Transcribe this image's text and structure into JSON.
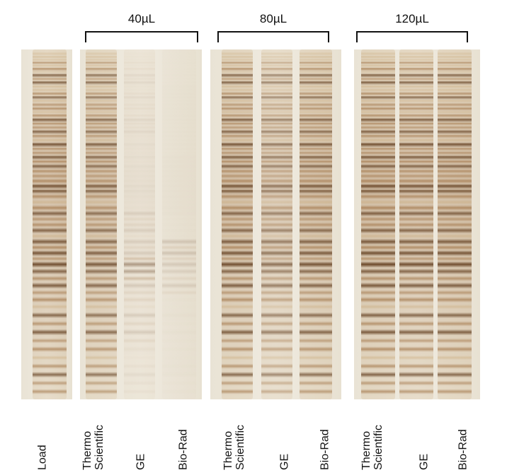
{
  "groups": [
    {
      "label": "40µL"
    },
    {
      "label": "80µL"
    },
    {
      "label": "120µL"
    }
  ],
  "lane_labels": {
    "load": "Load",
    "g1_thermo": "Thermo\nScientific",
    "g1_ge": "GE",
    "g1_biorad": "Bio-Rad",
    "g2_thermo": "Thermo\nScientific",
    "g2_ge": "GE",
    "g2_biorad": "Bio-Rad",
    "g3_thermo": "Thermo\nScientific",
    "g3_ge": "GE",
    "g3_biorad": "Bio-Rad"
  },
  "colors": {
    "gel_background": "#ece6d9",
    "band_dark": "#5a3414",
    "band_mid": "#9a6a3a",
    "band_light": "#c9a97a"
  }
}
